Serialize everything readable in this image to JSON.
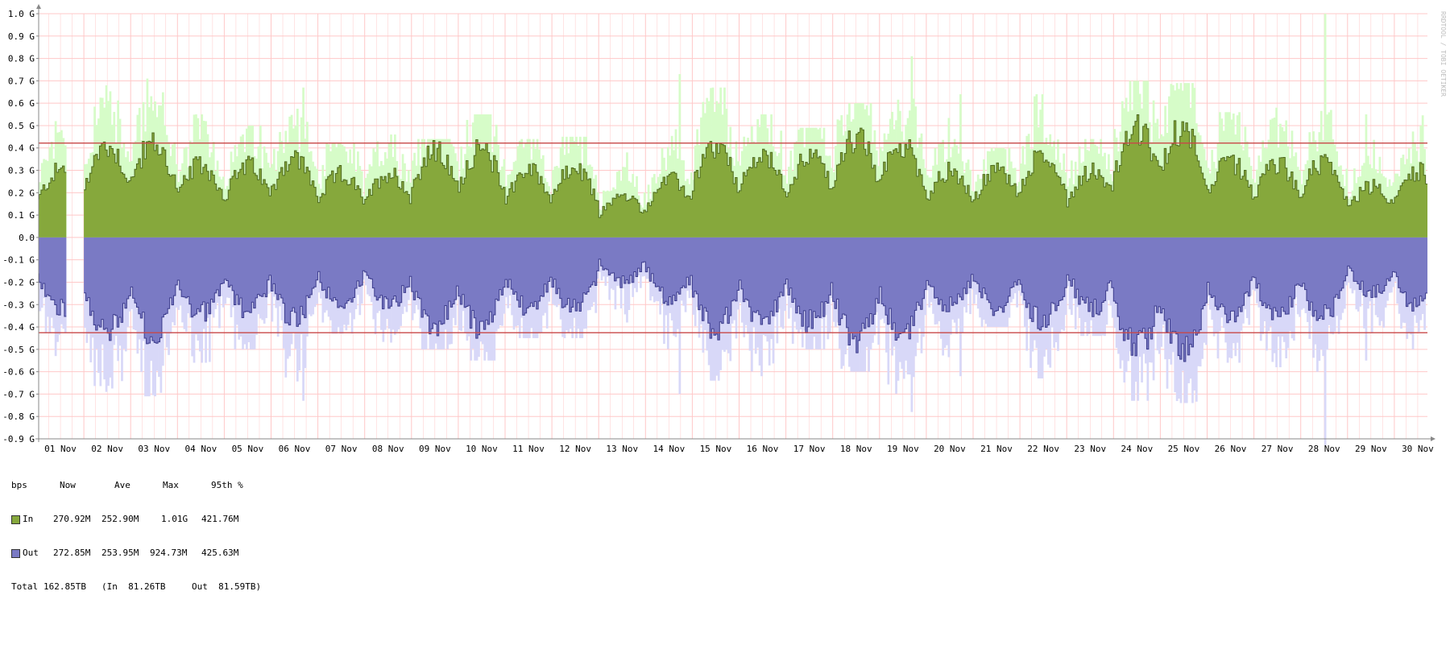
{
  "chart_data": {
    "type": "area",
    "ylim": [
      -0.9,
      1.0
    ],
    "y_ticks": [
      {
        "value": 1.0,
        "label": "1.0 G"
      },
      {
        "value": 0.9,
        "label": "0.9 G"
      },
      {
        "value": 0.8,
        "label": "0.8 G"
      },
      {
        "value": 0.7,
        "label": "0.7 G"
      },
      {
        "value": 0.6,
        "label": "0.6 G"
      },
      {
        "value": 0.5,
        "label": "0.5 G"
      },
      {
        "value": 0.4,
        "label": "0.4 G"
      },
      {
        "value": 0.3,
        "label": "0.3 G"
      },
      {
        "value": 0.2,
        "label": "0.2 G"
      },
      {
        "value": 0.1,
        "label": "0.1 G"
      },
      {
        "value": 0.0,
        "label": "0.0"
      },
      {
        "value": -0.1,
        "label": "-0.1 G"
      },
      {
        "value": -0.2,
        "label": "-0.2 G"
      },
      {
        "value": -0.3,
        "label": "-0.3 G"
      },
      {
        "value": -0.4,
        "label": "-0.4 G"
      },
      {
        "value": -0.5,
        "label": "-0.5 G"
      },
      {
        "value": -0.6,
        "label": "-0.6 G"
      },
      {
        "value": -0.7,
        "label": "-0.7 G"
      },
      {
        "value": -0.8,
        "label": "-0.8 G"
      },
      {
        "value": -0.9,
        "label": "-0.9 G"
      }
    ],
    "x_ticks": [
      "01 Nov",
      "02 Nov",
      "03 Nov",
      "04 Nov",
      "05 Nov",
      "06 Nov",
      "07 Nov",
      "08 Nov",
      "09 Nov",
      "10 Nov",
      "11 Nov",
      "12 Nov",
      "13 Nov",
      "14 Nov",
      "15 Nov",
      "16 Nov",
      "17 Nov",
      "18 Nov",
      "19 Nov",
      "20 Nov",
      "21 Nov",
      "22 Nov",
      "23 Nov",
      "24 Nov",
      "25 Nov",
      "26 Nov",
      "27 Nov",
      "28 Nov",
      "29 Nov",
      "30 Nov"
    ],
    "watermark": "RRDTOOL / TOBI OETIKER",
    "percentile_95": {
      "in": 0.4218,
      "out": -0.4256
    },
    "daily_avg_in": [
      0.21,
      0.3,
      0.32,
      0.24,
      0.23,
      0.27,
      0.21,
      0.2,
      0.28,
      0.3,
      0.22,
      0.24,
      0.13,
      0.17,
      0.3,
      0.27,
      0.26,
      0.33,
      0.32,
      0.22,
      0.21,
      0.28,
      0.2,
      0.35,
      0.38,
      0.25,
      0.24,
      0.26,
      0.16,
      0.22
    ],
    "daily_max_in": [
      0.52,
      0.68,
      0.71,
      0.55,
      0.5,
      0.67,
      0.42,
      0.46,
      0.44,
      0.55,
      0.44,
      0.45,
      0.38,
      0.73,
      0.67,
      0.55,
      0.49,
      0.6,
      0.81,
      0.64,
      0.4,
      0.64,
      0.44,
      0.7,
      0.69,
      0.56,
      0.58,
      1.0,
      0.55,
      0.65
    ],
    "daily_avg_out": [
      0.22,
      0.31,
      0.33,
      0.25,
      0.24,
      0.28,
      0.22,
      0.21,
      0.29,
      0.31,
      0.23,
      0.25,
      0.14,
      0.18,
      0.31,
      0.28,
      0.27,
      0.34,
      0.33,
      0.23,
      0.22,
      0.29,
      0.21,
      0.36,
      0.39,
      0.26,
      0.25,
      0.27,
      0.17,
      0.23
    ],
    "daily_max_out": [
      0.53,
      0.69,
      0.71,
      0.56,
      0.5,
      0.73,
      0.43,
      0.47,
      0.5,
      0.55,
      0.45,
      0.45,
      0.38,
      0.7,
      0.64,
      0.62,
      0.5,
      0.6,
      0.78,
      0.62,
      0.4,
      0.63,
      0.44,
      0.73,
      0.74,
      0.56,
      0.58,
      0.93,
      0.55,
      0.65
    ],
    "gap_day_fraction": [
      0.62,
      0.98
    ],
    "series": [
      {
        "name": "In",
        "color": "#86a83c",
        "peak_color": "#d6fcc8",
        "now": "270.92M",
        "ave": "252.90M",
        "max": "1.01G",
        "p95": "421.76M"
      },
      {
        "name": "Out",
        "color": "#7a7ac4",
        "peak_color": "#d8d8f8",
        "now": "272.85M",
        "ave": "253.95M",
        "max": "924.73M",
        "p95": "425.63M"
      }
    ]
  },
  "legend": {
    "unit": "bps",
    "headers": [
      "Now",
      "Ave",
      "Max",
      "95th %"
    ],
    "total": {
      "label": "Total",
      "value": "162.85TB",
      "in_part": "(In  81.26TB",
      "out_part": "Out  81.59TB)"
    }
  },
  "colors": {
    "grid": "#ffc8c8",
    "axis": "#888888",
    "p95_line": "#c84848",
    "in_line": "#4e6a1e",
    "out_line": "#3c3c8c"
  }
}
